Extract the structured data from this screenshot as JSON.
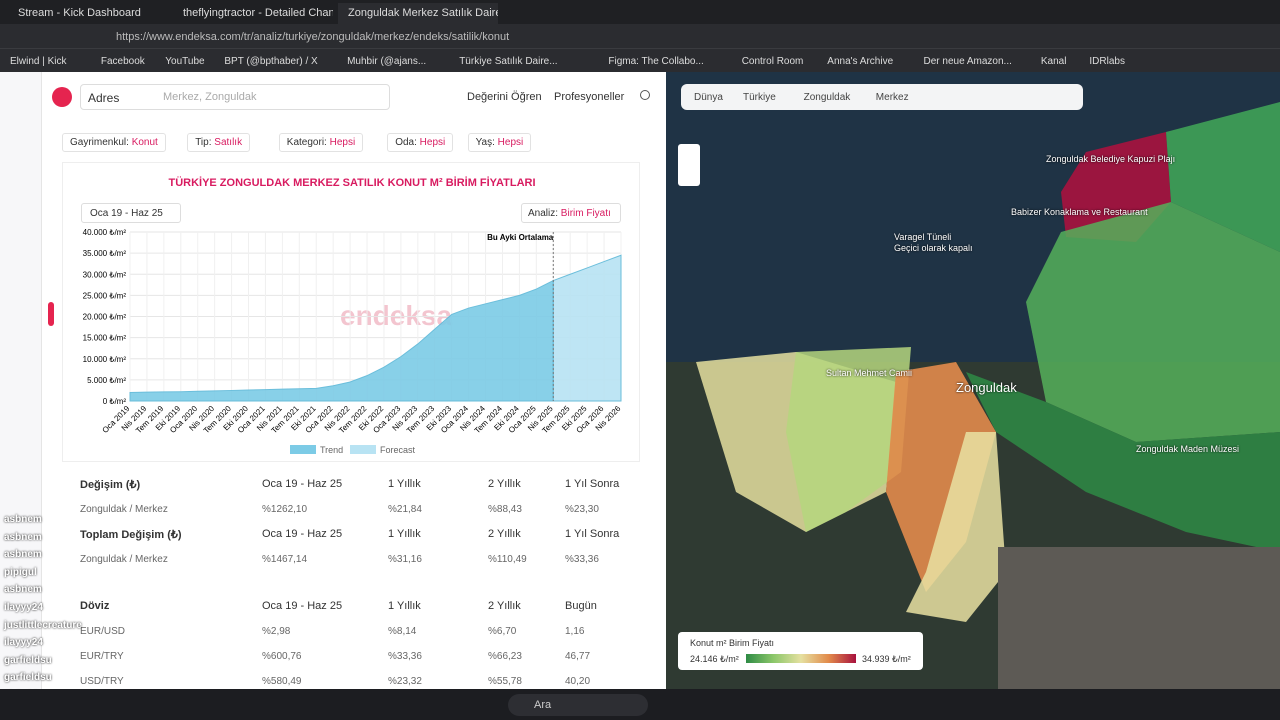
{
  "browser": {
    "tabs": [
      "Stream - Kick Dashboard",
      "theflyingtractor - Detailed Chang",
      "Zonguldak Merkez Satılık Daire..."
    ],
    "url": "https://www.endeksa.com/tr/analiz/turkiye/zonguldak/merkez/endeks/satilik/konut",
    "bookmarks": [
      "Elwind | Kick",
      "Facebook",
      "YouTube",
      "BPT (@bpthaber) / X",
      "Muhbir (@ajans...",
      "Türkiye Satılık Daire...",
      "Figma: The Collabo...",
      "Control Room",
      "Anna's Archive",
      "Der neue Amazon...",
      "Kanal",
      "IDRlabs"
    ]
  },
  "site": {
    "search_type": "Adres",
    "search_placeholder": "Merkez, Zonguldak",
    "nav": [
      "Değerini Öğren",
      "Profesyoneller"
    ]
  },
  "filters": [
    {
      "label": "Gayrimenkul:",
      "value": "Konut"
    },
    {
      "label": "Tip:",
      "value": "Satılık"
    },
    {
      "label": "Kategori:",
      "value": "Hepsi"
    },
    {
      "label": "Oda:",
      "value": "Hepsi"
    },
    {
      "label": "Yaş:",
      "value": "Hepsi"
    }
  ],
  "chart": {
    "type": "area",
    "title": "TÜRKİYE ZONGULDAK MERKEZ SATILIK KONUT M² BİRİM FİYATLARI",
    "date_range": "Oca 19 - Haz 25",
    "analysis_label": "Analiz:",
    "analysis_value": "Birim Fiyatı",
    "watermark": "endeksa",
    "annotation": "Bu Ayki Ortalama",
    "categories": [
      "Oca 2019",
      "Nis 2019",
      "Tem 2019",
      "Eki 2019",
      "Oca 2020",
      "Nis 2020",
      "Tem 2020",
      "Eki 2020",
      "Oca 2021",
      "Nis 2021",
      "Tem 2021",
      "Eki 2021",
      "Oca 2022",
      "Nis 2022",
      "Tem 2022",
      "Eki 2022",
      "Oca 2023",
      "Nis 2023",
      "Tem 2023",
      "Eki 2023",
      "Oca 2024",
      "Nis 2024",
      "Tem 2024",
      "Eki 2024",
      "Oca 2025",
      "Nis 2025",
      "Tem 2025",
      "Eki 2025",
      "Oca 2026",
      "Nis 2026"
    ],
    "series": [
      {
        "name": "Trend",
        "color": "#7ccbe6",
        "values": [
          2000,
          2100,
          2150,
          2200,
          2300,
          2400,
          2500,
          2600,
          2700,
          2800,
          2900,
          3000,
          3600,
          4500,
          6000,
          8000,
          10500,
          13500,
          17000,
          20500,
          22000,
          23000,
          24000,
          25000,
          26500,
          28500,
          null,
          null,
          null,
          null
        ]
      },
      {
        "name": "Forecast",
        "color": "#b8e3f3",
        "values": [
          null,
          null,
          null,
          null,
          null,
          null,
          null,
          null,
          null,
          null,
          null,
          null,
          null,
          null,
          null,
          null,
          null,
          null,
          null,
          null,
          null,
          null,
          null,
          null,
          null,
          28500,
          30000,
          31500,
          33000,
          34500
        ]
      }
    ],
    "ylim": [
      0,
      40000
    ],
    "yticks": [
      {
        "value": 0,
        "label": "0 ₺/m²"
      },
      {
        "value": 5000,
        "label": "5.000 ₺/m²"
      },
      {
        "value": 10000,
        "label": "10.000 ₺/m²"
      },
      {
        "value": 15000,
        "label": "15.000 ₺/m²"
      },
      {
        "value": 20000,
        "label": "20.000 ₺/m²"
      },
      {
        "value": 25000,
        "label": "25.000 ₺/m²"
      },
      {
        "value": 30000,
        "label": "30.000 ₺/m²"
      },
      {
        "value": 35000,
        "label": "35.000 ₺/m²"
      },
      {
        "value": 40000,
        "label": "40.000 ₺/m²"
      }
    ]
  },
  "tables": [
    {
      "header": [
        "Değişim (₺)",
        "Oca 19 - Haz 25",
        "1 Yıllık",
        "2 Yıllık",
        "1 Yıl Sonra"
      ],
      "rows": [
        [
          "Zonguldak / Merkez",
          "%1262,10",
          "%21,84",
          "%88,43",
          "%23,30"
        ]
      ]
    },
    {
      "header": [
        "Toplam Değişim (₺)",
        "Oca 19 - Haz 25",
        "1 Yıllık",
        "2 Yıllık",
        "1 Yıl Sonra"
      ],
      "rows": [
        [
          "Zonguldak / Merkez",
          "%1467,14",
          "%31,16",
          "%110,49",
          "%33,36"
        ]
      ]
    },
    {
      "header": [
        "Döviz",
        "Oca 19 - Haz 25",
        "1 Yıllık",
        "2 Yıllık",
        "Bugün"
      ],
      "rows": [
        [
          "EUR/USD",
          "%2,98",
          "%8,14",
          "%6,70",
          "1,16"
        ],
        [
          "EUR/TRY",
          "%600,76",
          "%33,36",
          "%66,23",
          "46,77"
        ],
        [
          "USD/TRY",
          "%580,49",
          "%23,32",
          "%55,78",
          "40,20"
        ]
      ]
    }
  ],
  "map": {
    "breadcrumb": [
      "Dünya",
      "Türkiye",
      "Zonguldak",
      "Merkez"
    ],
    "legend_title": "Konut m² Birim Fiyatı",
    "legend_min": "24.146 ₺/m²",
    "legend_max": "34.939 ₺/m²",
    "places": [
      "Babizer Konaklama ve Restaurant",
      "Varagel Tüneli",
      "Geçici olarak kapalı",
      "Sultan Mehmet Camii",
      "Zonguldak",
      "Zonguldak Maden Müzesi",
      "Zonguldak Belediye Kapuzi Plajı"
    ]
  },
  "chat": [
    "asbnem",
    "asbnem",
    "asbnem",
    "pipigul",
    "asbnem",
    "ilayyy24",
    "justlittlecreature",
    "ilayyy24",
    "garfieldsu",
    "garfieldsu",
    "cizkekk",
    "garfieldsu"
  ],
  "taskbar": {
    "search": "Ara"
  }
}
